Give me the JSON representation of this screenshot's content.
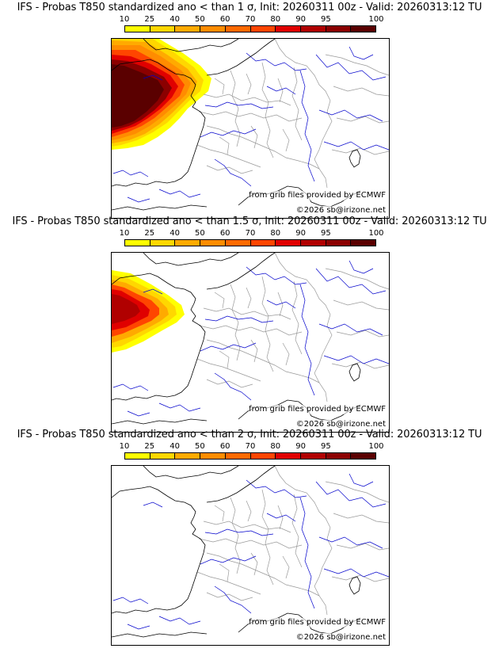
{
  "colorbar": {
    "tick_labels": [
      "10",
      "25",
      "40",
      "50",
      "60",
      "70",
      "80",
      "90",
      "95",
      "100"
    ],
    "colors": [
      "#ffff00",
      "#ffd700",
      "#ffaa00",
      "#ff8c00",
      "#ff6a00",
      "#ff4500",
      "#e00000",
      "#b00000",
      "#8b0000",
      "#5a0000"
    ]
  },
  "map": {
    "boundary_color": "#999999",
    "coast_color": "#000000",
    "river_color": "#0000cc"
  },
  "panels": [
    {
      "title": "IFS - Probas T850  standardized ano < than 1 σ, Init: 20260311 00z - Valid: 20260313:12 TU",
      "sigma_threshold": 1,
      "max_probability": 100,
      "credit_source": "from grib files provided by ECMWF",
      "credit_copyright": "©2026 sb@irizone.net"
    },
    {
      "title": "IFS - Probas T850  standardized ano < than 1.5 σ, Init: 20260311 00z - Valid: 20260313:12 TU",
      "sigma_threshold": 1.5,
      "max_probability": 95,
      "credit_source": "from grib files provided by ECMWF",
      "credit_copyright": "©2026 sb@irizone.net"
    },
    {
      "title": "IFS - Probas T850  standardized ano < than 2 σ, Init: 20260311 00z - Valid: 20260313:12 TU",
      "sigma_threshold": 2,
      "max_probability": 0,
      "credit_source": "from grib files provided by ECMWF",
      "credit_copyright": "©2026 sb@irizone.net"
    }
  ]
}
